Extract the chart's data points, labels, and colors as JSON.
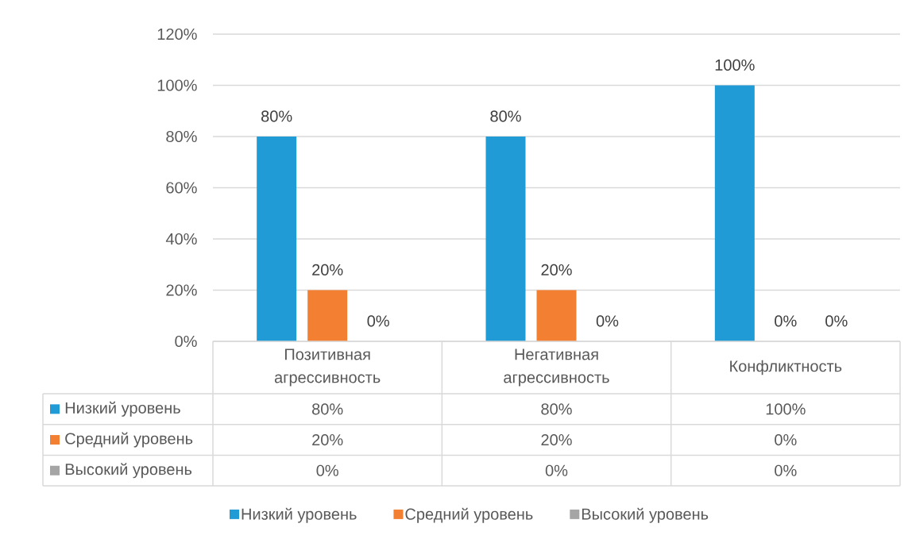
{
  "chart_data": {
    "type": "bar",
    "categories": [
      "Позитивная агрессивность",
      "Негативная агрессивность",
      "Конфликтность"
    ],
    "series": [
      {
        "name": "Низкий уровень",
        "color": "#209bd6",
        "values": [
          80,
          80,
          100
        ],
        "value_labels": [
          "80%",
          "80%",
          "100%"
        ]
      },
      {
        "name": "Средний уровень",
        "color": "#f37f32",
        "values": [
          20,
          20,
          0
        ],
        "value_labels": [
          "20%",
          "20%",
          "0%"
        ]
      },
      {
        "name": "Высокий уровень",
        "color": "#a5a5a5",
        "values": [
          0,
          0,
          0
        ],
        "value_labels": [
          "0%",
          "0%",
          "0%"
        ]
      }
    ],
    "ylim": [
      0,
      120
    ],
    "yticks": [
      {
        "value": 0,
        "label": "0%"
      },
      {
        "value": 20,
        "label": "20%"
      },
      {
        "value": 40,
        "label": "40%"
      },
      {
        "value": 60,
        "label": "60%"
      },
      {
        "value": 80,
        "label": "80%"
      },
      {
        "value": 100,
        "label": "100%"
      },
      {
        "value": 120,
        "label": "120%"
      }
    ],
    "grid": "y",
    "legend": "bottom"
  }
}
